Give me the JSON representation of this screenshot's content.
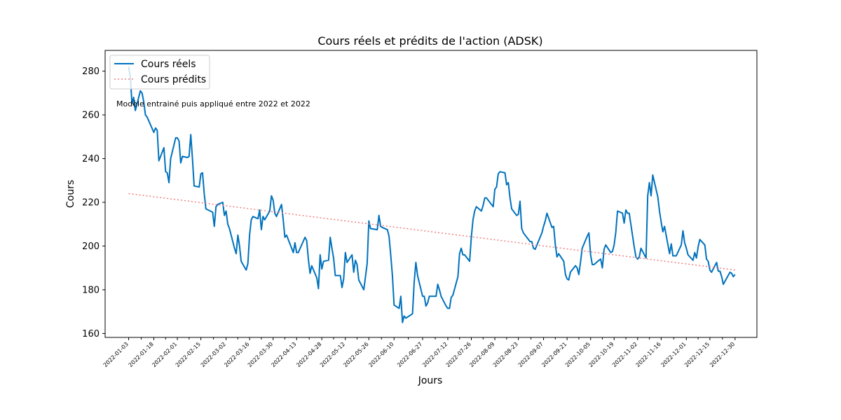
{
  "chart_data": {
    "type": "line",
    "title": "Cours réels et prédits de l'action (ADSK)",
    "xlabel": "Jours",
    "ylabel": "Cours",
    "annotation": "Modèle entrainé puis appliqué entre 2022 et 2022",
    "xlim": [
      "2021-12-20",
      "2023-01-12"
    ],
    "ylim": [
      158.2,
      289.5
    ],
    "yticks": [
      160,
      180,
      200,
      220,
      240,
      260,
      280
    ],
    "xticks": [
      "2022-01-03",
      "2022-01-18",
      "2022-02-01",
      "2022-02-15",
      "2022-03-02",
      "2022-03-16",
      "2022-03-30",
      "2022-04-13",
      "2022-04-28",
      "2022-05-12",
      "2022-05-26",
      "2022-06-10",
      "2022-06-27",
      "2022-07-12",
      "2022-07-26",
      "2022-08-09",
      "2022-08-23",
      "2022-09-07",
      "2022-09-21",
      "2022-10-05",
      "2022-10-19",
      "2022-11-02",
      "2022-11-16",
      "2022-12-01",
      "2022-12-15",
      "2022-12-30"
    ],
    "grid": false,
    "legend_position": "top-left",
    "series": [
      {
        "name": "Cours réels",
        "color": "#0072bd",
        "style": "solid",
        "points": [
          [
            "2022-01-03",
            282.0
          ],
          [
            "2022-01-04",
            277.0
          ],
          [
            "2022-01-05",
            265.0
          ],
          [
            "2022-01-06",
            268.0
          ],
          [
            "2022-01-07",
            262.0
          ],
          [
            "2022-01-10",
            271.0
          ],
          [
            "2022-01-11",
            270.0
          ],
          [
            "2022-01-12",
            266.0
          ],
          [
            "2022-01-13",
            260.0
          ],
          [
            "2022-01-14",
            259.0
          ],
          [
            "2022-01-18",
            252.0
          ],
          [
            "2022-01-19",
            254.0
          ],
          [
            "2022-01-20",
            253.0
          ],
          [
            "2022-01-21",
            239.0
          ],
          [
            "2022-01-24",
            245.0
          ],
          [
            "2022-01-25",
            234.0
          ],
          [
            "2022-01-26",
            233.5
          ],
          [
            "2022-01-27",
            229.0
          ],
          [
            "2022-01-28",
            240.0
          ],
          [
            "2022-01-31",
            249.5
          ],
          [
            "2022-02-01",
            249.5
          ],
          [
            "2022-02-02",
            248.0
          ],
          [
            "2022-02-03",
            238.0
          ],
          [
            "2022-02-04",
            241.0
          ],
          [
            "2022-02-07",
            240.5
          ],
          [
            "2022-02-08",
            241.0
          ],
          [
            "2022-02-09",
            251.0
          ],
          [
            "2022-02-10",
            240.0
          ],
          [
            "2022-02-11",
            227.5
          ],
          [
            "2022-02-14",
            227.0
          ],
          [
            "2022-02-15",
            233.0
          ],
          [
            "2022-02-16",
            233.5
          ],
          [
            "2022-02-17",
            224.0
          ],
          [
            "2022-02-18",
            217.0
          ],
          [
            "2022-02-22",
            215.5
          ],
          [
            "2022-02-23",
            209.0
          ],
          [
            "2022-02-24",
            218.0
          ],
          [
            "2022-02-25",
            219.0
          ],
          [
            "2022-02-28",
            220.0
          ],
          [
            "2022-03-01",
            214.0
          ],
          [
            "2022-03-02",
            216.0
          ],
          [
            "2022-03-03",
            210.0
          ],
          [
            "2022-03-04",
            208.0
          ],
          [
            "2022-03-07",
            199.0
          ],
          [
            "2022-03-08",
            196.5
          ],
          [
            "2022-03-09",
            205.0
          ],
          [
            "2022-03-10",
            200.0
          ],
          [
            "2022-03-11",
            193.0
          ],
          [
            "2022-03-14",
            189.0
          ],
          [
            "2022-03-15",
            192.0
          ],
          [
            "2022-03-16",
            205.0
          ],
          [
            "2022-03-17",
            212.0
          ],
          [
            "2022-03-18",
            213.5
          ],
          [
            "2022-03-21",
            212.5
          ],
          [
            "2022-03-22",
            216.5
          ],
          [
            "2022-03-23",
            207.5
          ],
          [
            "2022-03-24",
            213.5
          ],
          [
            "2022-03-25",
            212.0
          ],
          [
            "2022-03-28",
            216.0
          ],
          [
            "2022-03-29",
            223.0
          ],
          [
            "2022-03-30",
            221.0
          ],
          [
            "2022-03-31",
            215.0
          ],
          [
            "2022-04-01",
            213.5
          ],
          [
            "2022-04-04",
            219.0
          ],
          [
            "2022-04-05",
            212.0
          ],
          [
            "2022-04-06",
            204.0
          ],
          [
            "2022-04-07",
            205.0
          ],
          [
            "2022-04-08",
            203.0
          ],
          [
            "2022-04-11",
            197.0
          ],
          [
            "2022-04-12",
            201.5
          ],
          [
            "2022-04-13",
            197.0
          ],
          [
            "2022-04-14",
            197.0
          ],
          [
            "2022-04-18",
            204.0
          ],
          [
            "2022-04-19",
            202.5
          ],
          [
            "2022-04-20",
            194.0
          ],
          [
            "2022-04-21",
            187.5
          ],
          [
            "2022-04-22",
            191.0
          ],
          [
            "2022-04-25",
            185.5
          ],
          [
            "2022-04-26",
            180.5
          ],
          [
            "2022-04-27",
            196.0
          ],
          [
            "2022-04-28",
            189.5
          ],
          [
            "2022-04-29",
            193.0
          ],
          [
            "2022-05-02",
            193.5
          ],
          [
            "2022-05-03",
            204.0
          ],
          [
            "2022-05-04",
            199.0
          ],
          [
            "2022-05-05",
            194.5
          ],
          [
            "2022-05-06",
            186.5
          ],
          [
            "2022-05-09",
            186.5
          ],
          [
            "2022-05-10",
            181.0
          ],
          [
            "2022-05-11",
            185.0
          ],
          [
            "2022-05-12",
            197.0
          ],
          [
            "2022-05-13",
            192.5
          ],
          [
            "2022-05-16",
            196.0
          ],
          [
            "2022-05-17",
            188.0
          ],
          [
            "2022-05-18",
            193.5
          ],
          [
            "2022-05-19",
            191.5
          ],
          [
            "2022-05-20",
            184.5
          ],
          [
            "2022-05-23",
            180.0
          ],
          [
            "2022-05-24",
            186.0
          ],
          [
            "2022-05-25",
            192.0
          ],
          [
            "2022-05-26",
            211.5
          ],
          [
            "2022-05-27",
            208.0
          ],
          [
            "2022-05-31",
            207.5
          ],
          [
            "2022-06-01",
            214.0
          ],
          [
            "2022-06-02",
            209.0
          ],
          [
            "2022-06-03",
            208.5
          ],
          [
            "2022-06-06",
            207.5
          ],
          [
            "2022-06-07",
            204.5
          ],
          [
            "2022-06-08",
            196.0
          ],
          [
            "2022-06-09",
            186.5
          ],
          [
            "2022-06-10",
            173.0
          ],
          [
            "2022-06-13",
            171.5
          ],
          [
            "2022-06-14",
            177.0
          ],
          [
            "2022-06-15",
            165.0
          ],
          [
            "2022-06-16",
            168.0
          ],
          [
            "2022-06-17",
            167.0
          ],
          [
            "2022-06-21",
            169.0
          ],
          [
            "2022-06-22",
            183.5
          ],
          [
            "2022-06-23",
            192.5
          ],
          [
            "2022-06-24",
            186.5
          ],
          [
            "2022-06-27",
            177.0
          ],
          [
            "2022-06-28",
            177.0
          ],
          [
            "2022-06-29",
            172.5
          ],
          [
            "2022-06-30",
            174.0
          ],
          [
            "2022-07-01",
            177.0
          ],
          [
            "2022-07-05",
            177.0
          ],
          [
            "2022-07-06",
            182.5
          ],
          [
            "2022-07-07",
            180.0
          ],
          [
            "2022-07-08",
            177.0
          ],
          [
            "2022-07-11",
            172.5
          ],
          [
            "2022-07-12",
            171.5
          ],
          [
            "2022-07-13",
            171.5
          ],
          [
            "2022-07-14",
            176.5
          ],
          [
            "2022-07-15",
            177.5
          ],
          [
            "2022-07-18",
            186.0
          ],
          [
            "2022-07-19",
            196.5
          ],
          [
            "2022-07-20",
            199.0
          ],
          [
            "2022-07-21",
            196.0
          ],
          [
            "2022-07-22",
            196.0
          ],
          [
            "2022-07-25",
            193.0
          ],
          [
            "2022-07-26",
            204.0
          ],
          [
            "2022-07-27",
            212.0
          ],
          [
            "2022-07-28",
            216.0
          ],
          [
            "2022-07-29",
            218.0
          ],
          [
            "2022-08-01",
            216.0
          ],
          [
            "2022-08-02",
            218.5
          ],
          [
            "2022-08-03",
            222.0
          ],
          [
            "2022-08-04",
            222.0
          ],
          [
            "2022-08-05",
            221.0
          ],
          [
            "2022-08-08",
            218.0
          ],
          [
            "2022-08-09",
            226.0
          ],
          [
            "2022-08-10",
            227.0
          ],
          [
            "2022-08-11",
            233.0
          ],
          [
            "2022-08-12",
            234.0
          ],
          [
            "2022-08-15",
            233.5
          ],
          [
            "2022-08-16",
            228.0
          ],
          [
            "2022-08-17",
            229.0
          ],
          [
            "2022-08-18",
            222.0
          ],
          [
            "2022-08-19",
            217.0
          ],
          [
            "2022-08-22",
            214.0
          ],
          [
            "2022-08-23",
            214.5
          ],
          [
            "2022-08-24",
            220.5
          ],
          [
            "2022-08-25",
            208.0
          ],
          [
            "2022-08-26",
            206.0
          ],
          [
            "2022-08-29",
            203.0
          ],
          [
            "2022-08-30",
            202.0
          ],
          [
            "2022-08-31",
            202.0
          ],
          [
            "2022-09-01",
            199.0
          ],
          [
            "2022-09-02",
            198.5
          ],
          [
            "2022-09-06",
            206.0
          ],
          [
            "2022-09-07",
            209.0
          ],
          [
            "2022-09-08",
            211.5
          ],
          [
            "2022-09-09",
            215.0
          ],
          [
            "2022-09-12",
            208.5
          ],
          [
            "2022-09-13",
            209.0
          ],
          [
            "2022-09-14",
            200.5
          ],
          [
            "2022-09-15",
            195.0
          ],
          [
            "2022-09-16",
            196.5
          ],
          [
            "2022-09-19",
            193.0
          ],
          [
            "2022-09-20",
            187.0
          ],
          [
            "2022-09-21",
            185.0
          ],
          [
            "2022-09-22",
            184.5
          ],
          [
            "2022-09-23",
            188.0
          ],
          [
            "2022-09-26",
            191.0
          ],
          [
            "2022-09-27",
            190.0
          ],
          [
            "2022-09-28",
            187.0
          ],
          [
            "2022-09-29",
            192.5
          ],
          [
            "2022-09-30",
            199.0
          ],
          [
            "2022-10-03",
            204.5
          ],
          [
            "2022-10-04",
            206.0
          ],
          [
            "2022-10-05",
            196.0
          ],
          [
            "2022-10-06",
            191.5
          ],
          [
            "2022-10-07",
            191.5
          ],
          [
            "2022-10-10",
            193.5
          ],
          [
            "2022-10-11",
            194.0
          ],
          [
            "2022-10-12",
            190.0
          ],
          [
            "2022-10-13",
            198.5
          ],
          [
            "2022-10-14",
            200.5
          ],
          [
            "2022-10-17",
            197.0
          ],
          [
            "2022-10-18",
            197.5
          ],
          [
            "2022-10-19",
            200.5
          ],
          [
            "2022-10-20",
            206.5
          ],
          [
            "2022-10-21",
            216.0
          ],
          [
            "2022-10-24",
            215.0
          ],
          [
            "2022-10-25",
            210.5
          ],
          [
            "2022-10-26",
            216.5
          ],
          [
            "2022-10-27",
            215.0
          ],
          [
            "2022-10-28",
            215.0
          ],
          [
            "2022-10-31",
            199.5
          ],
          [
            "2022-11-01",
            195.0
          ],
          [
            "2022-11-02",
            194.0
          ],
          [
            "2022-11-03",
            195.0
          ],
          [
            "2022-11-04",
            199.0
          ],
          [
            "2022-11-07",
            194.5
          ],
          [
            "2022-11-08",
            223.0
          ],
          [
            "2022-11-09",
            229.0
          ],
          [
            "2022-11-10",
            223.0
          ],
          [
            "2022-11-11",
            232.5
          ],
          [
            "2022-11-14",
            222.5
          ],
          [
            "2022-11-15",
            216.0
          ],
          [
            "2022-11-16",
            211.0
          ],
          [
            "2022-11-17",
            206.5
          ],
          [
            "2022-11-18",
            209.0
          ],
          [
            "2022-11-21",
            196.5
          ],
          [
            "2022-11-22",
            201.0
          ],
          [
            "2022-11-23",
            195.5
          ],
          [
            "2022-11-25",
            195.5
          ],
          [
            "2022-11-28",
            200.5
          ],
          [
            "2022-11-29",
            207.0
          ],
          [
            "2022-11-30",
            201.5
          ],
          [
            "2022-12-01",
            199.0
          ],
          [
            "2022-12-02",
            196.0
          ],
          [
            "2022-12-05",
            193.5
          ],
          [
            "2022-12-06",
            197.0
          ],
          [
            "2022-12-07",
            194.5
          ],
          [
            "2022-12-08",
            199.5
          ],
          [
            "2022-12-09",
            203.0
          ],
          [
            "2022-12-12",
            200.5
          ],
          [
            "2022-12-13",
            194.0
          ],
          [
            "2022-12-14",
            193.0
          ],
          [
            "2022-12-15",
            189.0
          ],
          [
            "2022-12-16",
            188.0
          ],
          [
            "2022-12-19",
            192.5
          ],
          [
            "2022-12-20",
            188.5
          ],
          [
            "2022-12-21",
            188.5
          ],
          [
            "2022-12-22",
            186.0
          ],
          [
            "2022-12-23",
            182.5
          ],
          [
            "2022-12-27",
            188.0
          ],
          [
            "2022-12-28",
            187.5
          ],
          [
            "2022-12-29",
            186.0
          ],
          [
            "2022-12-30",
            187.0
          ]
        ]
      },
      {
        "name": "Cours prédits",
        "color": "#f08080",
        "style": "dotted",
        "points": [
          [
            "2022-01-03",
            224.0
          ],
          [
            "2022-12-30",
            189.0
          ]
        ]
      }
    ]
  }
}
